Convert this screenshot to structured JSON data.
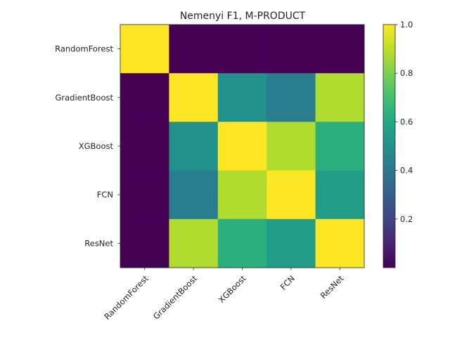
{
  "chart_data": {
    "type": "heatmap",
    "title": "Nemenyi F1, M-PRODUCT",
    "rows": [
      "RandomForest",
      "GradientBoost",
      "XGBoost",
      "FCN",
      "ResNet"
    ],
    "columns": [
      "RandomForest",
      "GradientBoost",
      "XGBoost",
      "FCN",
      "ResNet"
    ],
    "values": [
      [
        1.0,
        0.0,
        0.0,
        0.0,
        0.0
      ],
      [
        0.0,
        1.0,
        0.5,
        0.42,
        0.88
      ],
      [
        0.0,
        0.5,
        1.0,
        0.88,
        0.63
      ],
      [
        0.0,
        0.42,
        0.88,
        1.0,
        0.55
      ],
      [
        0.0,
        0.88,
        0.63,
        0.55,
        1.0
      ]
    ],
    "colormap": "viridis",
    "colorbar": {
      "range": [
        0.0,
        1.0
      ],
      "ticks": [
        0.2,
        0.4,
        0.6,
        0.8,
        1.0
      ],
      "tick_labels": [
        "0.2",
        "0.4",
        "0.6",
        "0.8",
        "1.0"
      ]
    },
    "grid": false
  }
}
